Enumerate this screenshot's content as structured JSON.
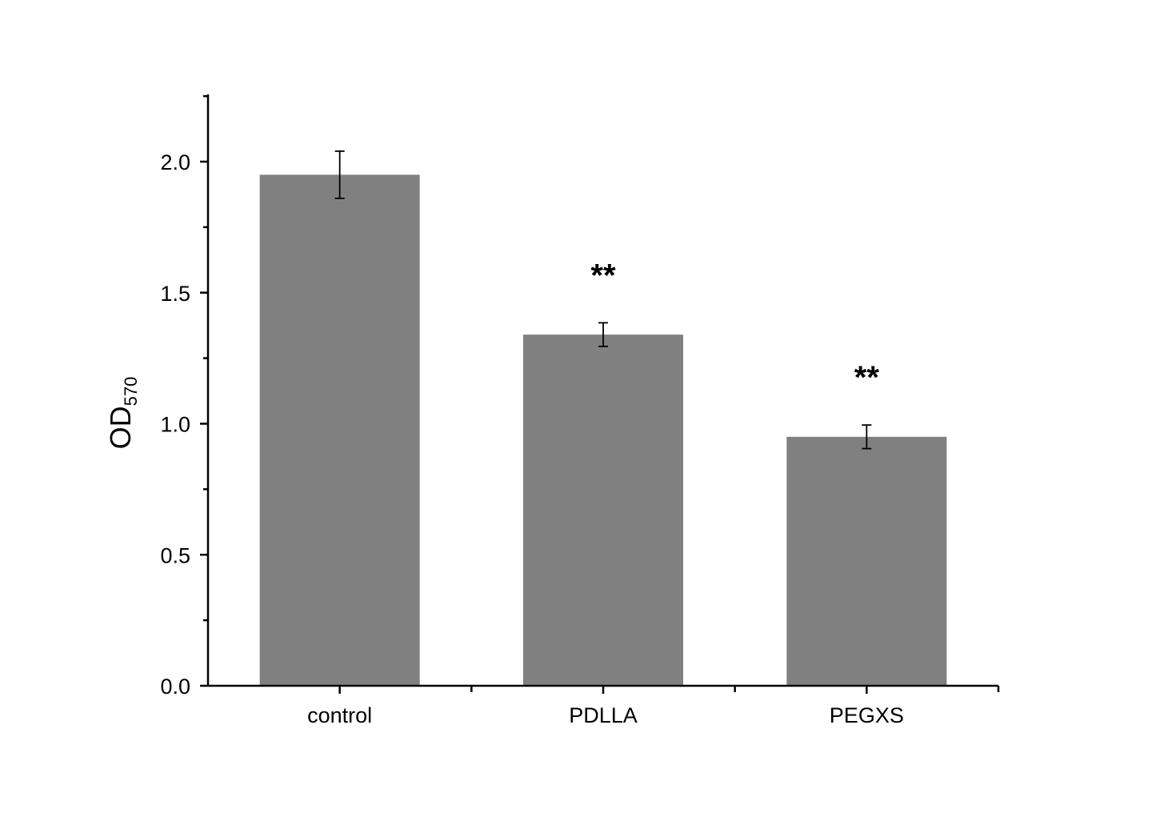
{
  "chart_data": {
    "type": "bar",
    "title": "",
    "xlabel": "",
    "ylabel": {
      "main": "OD",
      "subscript": "570"
    },
    "categories": [
      "control",
      "PDLLA",
      "PEGXS"
    ],
    "values": [
      1.95,
      1.34,
      0.95
    ],
    "errors": [
      0.09,
      0.045,
      0.045
    ],
    "annotations": [
      "",
      "**",
      "**"
    ],
    "ylim": [
      0,
      2.25
    ],
    "yticks": [
      "0.0",
      "0.5",
      "1.0",
      "1.5",
      "2.0"
    ],
    "bar_color": "#808080",
    "grid": false,
    "legend": false
  }
}
